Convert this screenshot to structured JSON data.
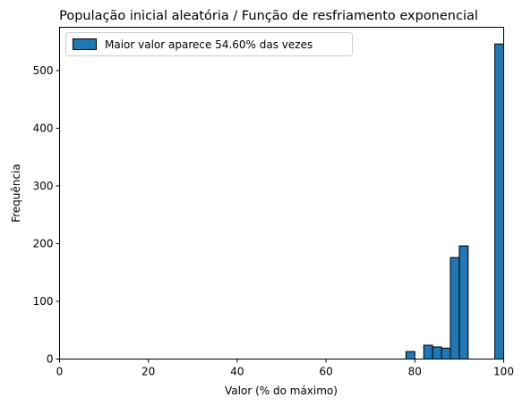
{
  "chart_data": {
    "type": "bar",
    "title": "População inicial aleatória / Função de resfriamento exponencial",
    "xlabel": "Valor (% do máximo)",
    "ylabel": "Frequência",
    "xlim": [
      0,
      100
    ],
    "ylim": [
      0,
      575
    ],
    "xticks": [
      0,
      20,
      40,
      60,
      80,
      100
    ],
    "yticks": [
      0,
      100,
      200,
      300,
      400,
      500
    ],
    "legend": {
      "position": "top-left",
      "label": "Maior valor aparece 54.60% das vezes"
    },
    "grid": false,
    "bar_color": "#1f77b4",
    "edge_color": "#000000",
    "bins": [
      {
        "start": 78,
        "end": 80,
        "value": 13
      },
      {
        "start": 82,
        "end": 84,
        "value": 24
      },
      {
        "start": 84,
        "end": 86,
        "value": 21
      },
      {
        "start": 86,
        "end": 88,
        "value": 19
      },
      {
        "start": 88,
        "end": 90,
        "value": 176
      },
      {
        "start": 90,
        "end": 92,
        "value": 196
      },
      {
        "start": 98,
        "end": 100,
        "value": 546
      }
    ]
  }
}
